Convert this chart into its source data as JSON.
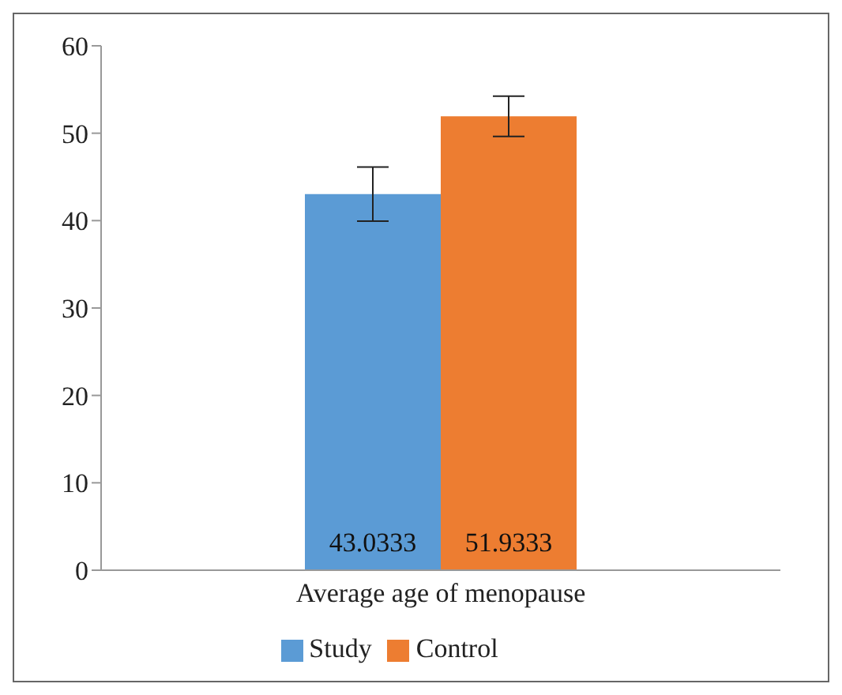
{
  "chart_data": {
    "type": "bar",
    "categories": [
      "Average age of menopause"
    ],
    "series": [
      {
        "name": "Study",
        "color": "#5b9bd5",
        "values": [
          43.0333
        ],
        "errors": [
          3.1
        ]
      },
      {
        "name": "Control",
        "color": "#ed7d31",
        "values": [
          51.9333
        ],
        "errors": [
          2.3
        ]
      }
    ],
    "ylim": [
      0,
      60
    ],
    "yticks": [
      0,
      10,
      20,
      30,
      40,
      50,
      60
    ],
    "grid": false,
    "legend": "bottom",
    "data_labels": true
  }
}
